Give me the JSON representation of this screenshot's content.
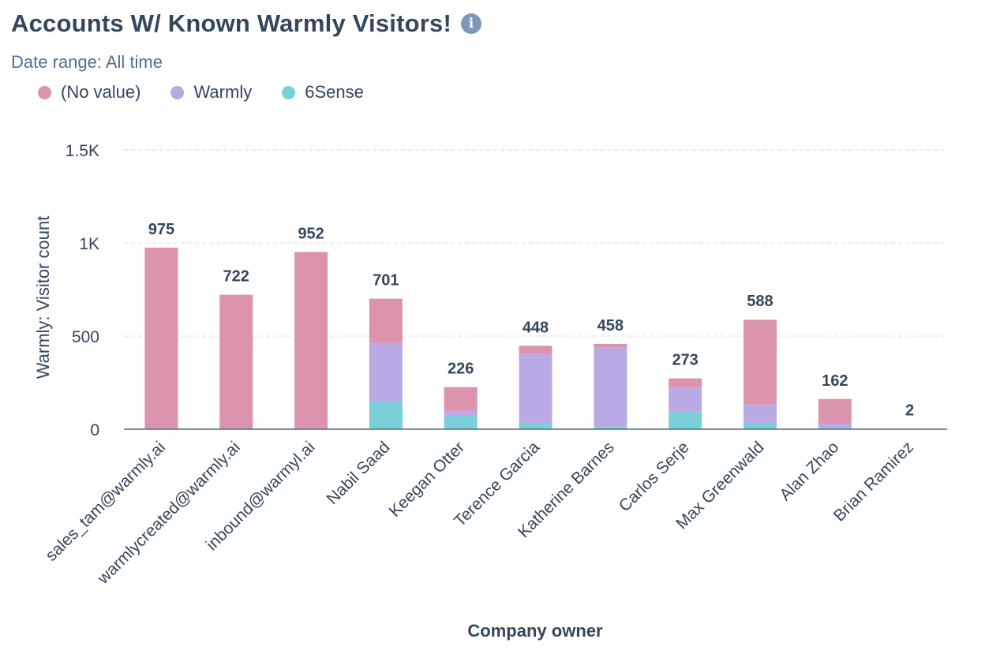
{
  "header": {
    "title": "Accounts W/ Known Warmly Visitors!",
    "info_icon": "info-icon",
    "subtitle": "Date range: All time"
  },
  "colors": {
    "no_value": "#dc93ae",
    "warmly": "#b9aae6",
    "sense6": "#7ad0d6",
    "grid": "#d6dde5",
    "axis": "#516f90",
    "text": "#33475b"
  },
  "chart_data": {
    "type": "bar",
    "stacked": true,
    "title": "Accounts W/ Known Warmly Visitors!",
    "xlabel": "Company owner",
    "ylabel": "Warmly: Visitor count",
    "ylim": [
      0,
      1500
    ],
    "yticks": [
      {
        "value": 0,
        "label": "0"
      },
      {
        "value": 500,
        "label": "500"
      },
      {
        "value": 1000,
        "label": "1K"
      },
      {
        "value": 1500,
        "label": "1.5K"
      }
    ],
    "legend": [
      "(No value)",
      "Warmly",
      "6Sense"
    ],
    "categories": [
      "sales_tam@warmly.ai",
      "warmlycreated@warmly.ai",
      "inbound@warmyl.ai",
      "Nabil Saad",
      "Keegan Otter",
      "Terence Garcia",
      "Katherine Barnes",
      "Carlos Serje",
      "Max Greenwald",
      "Alan Zhao",
      "Brian Ramirez"
    ],
    "totals": [
      "975",
      "722",
      "952",
      "701",
      "226",
      "448",
      "458",
      "273",
      "588",
      "162",
      "2"
    ],
    "series": [
      {
        "name": "6Sense",
        "key": "sense6",
        "values": [
          0,
          0,
          0,
          148,
          74,
          32,
          14,
          92,
          32,
          6,
          0
        ]
      },
      {
        "name": "Warmly",
        "key": "warmly",
        "values": [
          0,
          0,
          0,
          315,
          24,
          373,
          426,
          133,
          101,
          24,
          0
        ]
      },
      {
        "name": "(No value)",
        "key": "no_value",
        "values": [
          975,
          722,
          952,
          238,
          128,
          43,
          18,
          48,
          455,
          132,
          2
        ]
      }
    ]
  }
}
